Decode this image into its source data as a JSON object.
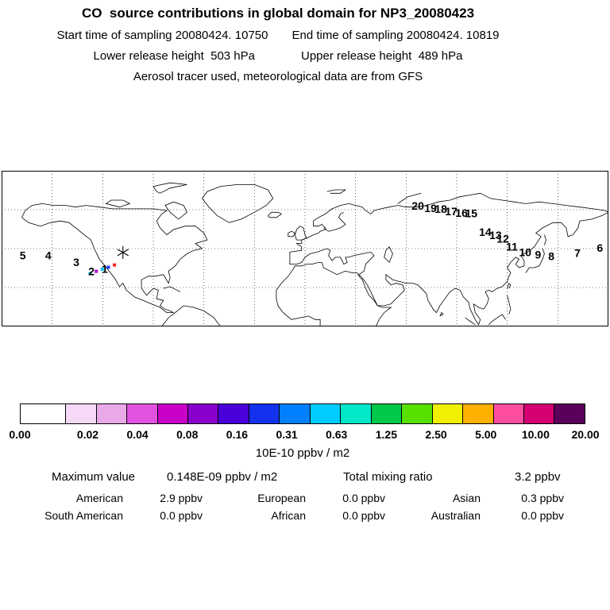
{
  "header": {
    "title": "CO  source contributions in global domain for NP3_20080423",
    "start_time": "Start time of sampling 20080424. 10750",
    "end_time": "End time of sampling 20080424. 10819",
    "lower_release": "Lower release height  503 hPa",
    "upper_release": "Upper release height  489 hPa",
    "tracer_info": "Aerosol tracer used, meteorological data are from GFS"
  },
  "chart_data": {
    "type": "scatter",
    "title": "CO source contributions in global domain for NP3_20080423",
    "layout": "equirectangular world map, lon -180 to 180, lat 0N to 90N, dotted graticule",
    "colorbar": {
      "unit": "10E-10 ppbv / m2",
      "ticks": [
        "0.00",
        "0.02",
        "0.04",
        "0.08",
        "0.16",
        "0.31",
        "0.63",
        "1.25",
        "2.50",
        "5.00",
        "10.00",
        "20.00"
      ],
      "colors": [
        "#ffffff",
        "#f6d9f6",
        "#eaaaea",
        "#e052e0",
        "#c800c8",
        "#8a00cc",
        "#4a00d8",
        "#1432ee",
        "#0080ff",
        "#00ccff",
        "#00e8c8",
        "#00c84a",
        "#58e000",
        "#f0f000",
        "#ffb000",
        "#ff4da0",
        "#d40074",
        "#5a005a"
      ]
    },
    "stats": {
      "max_label": "Maximum value",
      "max_value": "0.148E-09 ppbv / m2",
      "total_label": "Total mixing ratio",
      "total_value": "3.2 ppbv",
      "regions": [
        {
          "label": "American",
          "value": "2.9 ppbv"
        },
        {
          "label": "European",
          "value": "0.0 ppbv"
        },
        {
          "label": "Asian",
          "value": "0.3 ppbv"
        },
        {
          "label": "South American",
          "value": "0.0 ppbv"
        },
        {
          "label": "African",
          "value": "0.0 ppbv"
        },
        {
          "label": "Australian",
          "value": "0.0 ppbv"
        }
      ]
    },
    "map": {
      "receptor": {
        "x": 20.0,
        "y": 52.5
      },
      "trajectory_points": [
        {
          "label": "1",
          "x": 17.0,
          "y": 63.0
        },
        {
          "label": "2",
          "x": 14.8,
          "y": 64.5
        },
        {
          "label": "3",
          "x": 12.3,
          "y": 58.8
        },
        {
          "label": "4",
          "x": 7.7,
          "y": 54.3
        },
        {
          "label": "5",
          "x": 3.5,
          "y": 54.3
        },
        {
          "label": "6",
          "x": 98.6,
          "y": 49.6
        },
        {
          "label": "7",
          "x": 94.9,
          "y": 52.8
        },
        {
          "label": "8",
          "x": 90.6,
          "y": 54.8
        },
        {
          "label": "9",
          "x": 88.4,
          "y": 53.8
        },
        {
          "label": "10",
          "x": 86.3,
          "y": 52.2
        },
        {
          "label": "11",
          "x": 84.1,
          "y": 48.6
        },
        {
          "label": "12",
          "x": 82.6,
          "y": 43.5
        },
        {
          "label": "13",
          "x": 81.4,
          "y": 41.4
        },
        {
          "label": "14",
          "x": 79.7,
          "y": 39.4
        },
        {
          "label": "15",
          "x": 77.4,
          "y": 27.2
        },
        {
          "label": "16",
          "x": 75.8,
          "y": 27.0
        },
        {
          "label": "17",
          "x": 74.1,
          "y": 26.0
        },
        {
          "label": "18",
          "x": 72.4,
          "y": 24.6
        },
        {
          "label": "19",
          "x": 70.7,
          "y": 24.1
        },
        {
          "label": "20",
          "x": 68.6,
          "y": 22.5
        }
      ],
      "hotspots": [
        {
          "x": 18.6,
          "y": 60.5,
          "color": "#ff2020"
        },
        {
          "x": 17.6,
          "y": 62.0,
          "color": "#2040ff"
        },
        {
          "x": 16.6,
          "y": 63.2,
          "color": "#00c8ff"
        },
        {
          "x": 15.6,
          "y": 64.6,
          "color": "#b000d0"
        },
        {
          "x": 14.6,
          "y": 66.0,
          "color": "#00c8ff"
        }
      ]
    }
  }
}
